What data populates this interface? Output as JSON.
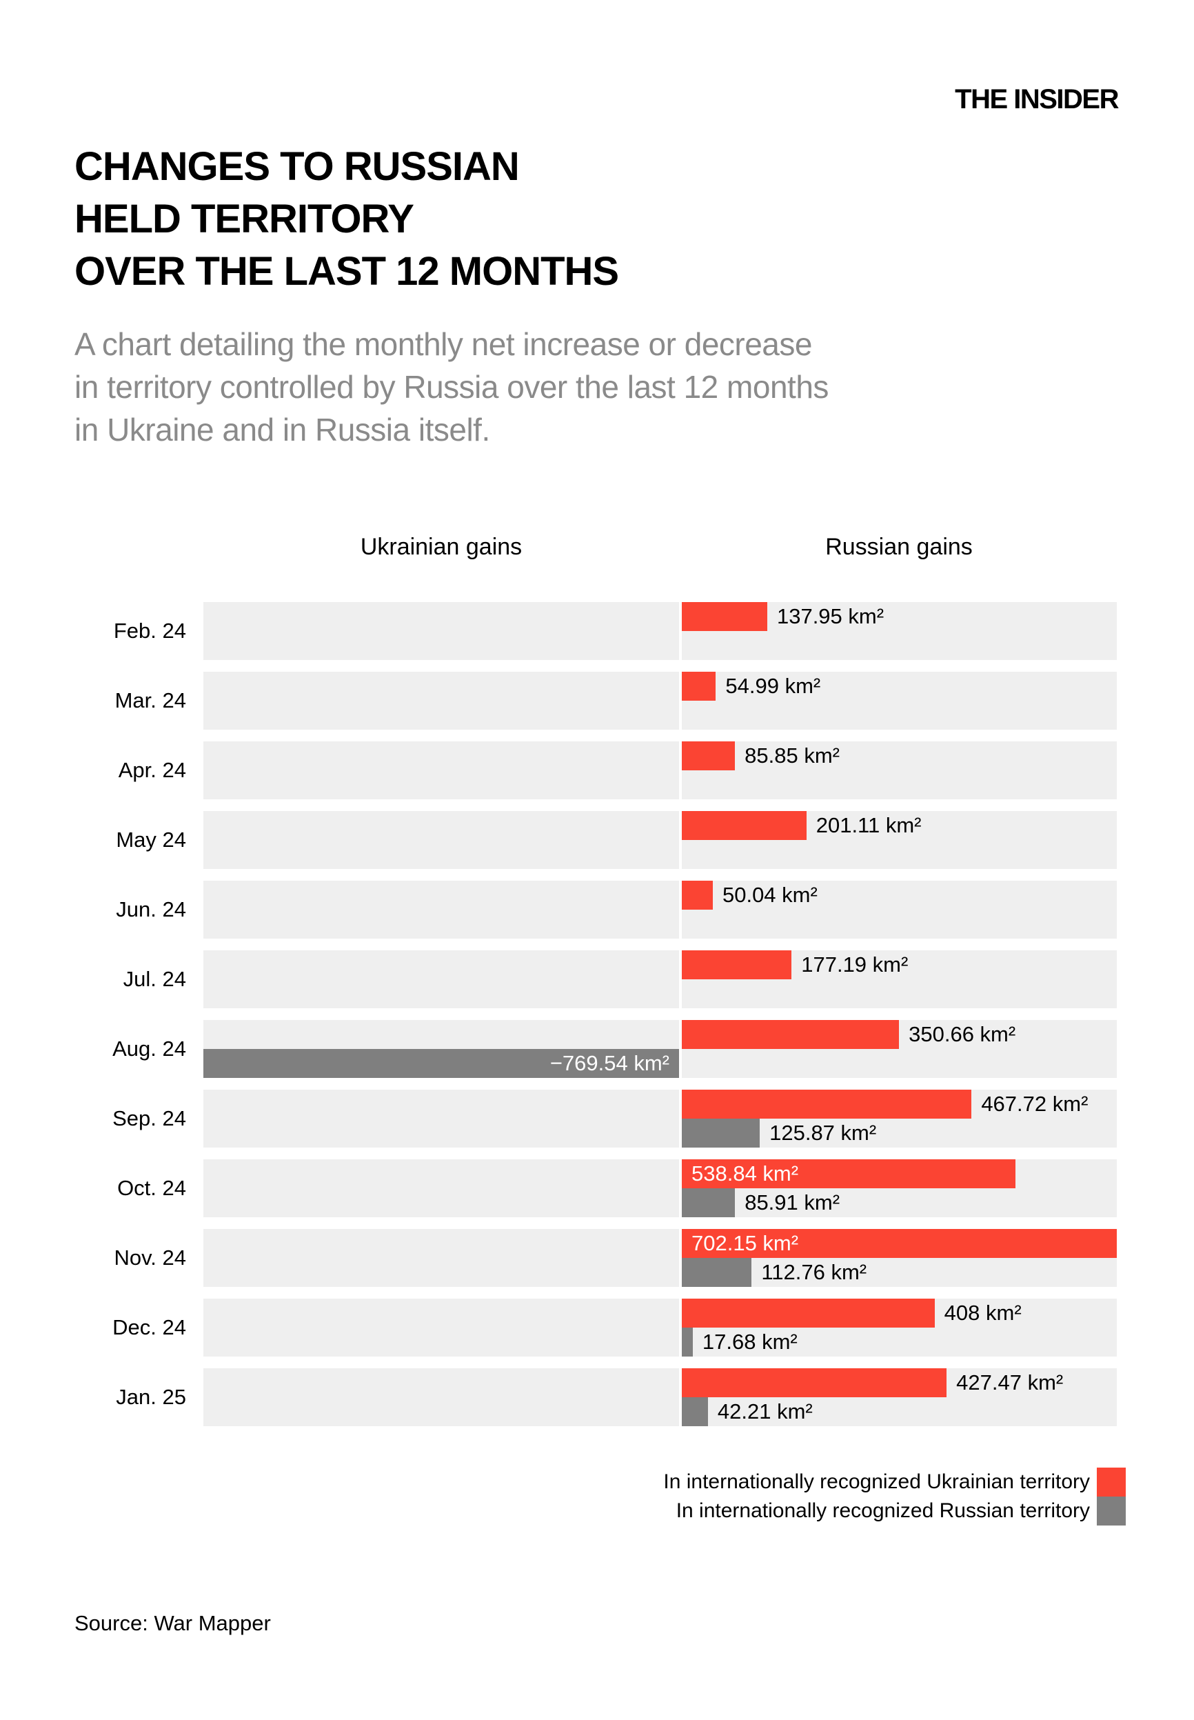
{
  "brand": "THE INSIDER",
  "title_lines": [
    "CHANGES TO RUSSIAN",
    "HELD TERRITORY",
    "OVER THE LAST 12 MONTHS"
  ],
  "subtitle_lines": [
    "A chart detailing the monthly net increase or decrease",
    "in territory controlled by Russia over the last 12 months",
    "in Ukraine and in Russia itself."
  ],
  "column_headers": {
    "left": "Ukrainian gains",
    "right": "Russian gains"
  },
  "legend": [
    {
      "label": "In internationally recognized Ukrainian territory",
      "color": "#fb4433"
    },
    {
      "label": "In internationally recognized Russian territory",
      "color": "#7f7f7f"
    }
  ],
  "source": "Source: War Mapper",
  "colors": {
    "ukraine_red": "#fb4433",
    "russia_gray": "#7f7f7f",
    "row_bg": "#efefef",
    "subtitle_gray": "#8a8a8a"
  },
  "chart_data": {
    "type": "bar",
    "orientation": "horizontal",
    "unit": "km²",
    "title": "Changes to Russian held territory over the last 12 months",
    "axis": {
      "zero_centered": true,
      "max_value": 702.15,
      "min_value": -769.54,
      "grid": false
    },
    "legend_position": "bottom-right",
    "categories": [
      "Feb. 24",
      "Mar. 24",
      "Apr. 24",
      "May 24",
      "Jun. 24",
      "Jul. 24",
      "Aug. 24",
      "Sep. 24",
      "Oct. 24",
      "Nov. 24",
      "Dec. 24",
      "Jan. 25"
    ],
    "series": [
      {
        "name": "In internationally recognized Ukrainian territory",
        "values": [
          137.95,
          54.99,
          85.85,
          201.11,
          50.04,
          177.19,
          350.66,
          467.72,
          538.84,
          702.15,
          408,
          427.47
        ]
      },
      {
        "name": "In internationally recognized Russian territory",
        "values": [
          null,
          null,
          null,
          null,
          null,
          null,
          -769.54,
          125.87,
          85.91,
          112.76,
          17.68,
          42.21
        ]
      }
    ],
    "rows": [
      {
        "month": "Feb. 24",
        "ua": 137.95,
        "ua_label": "137.95 km²",
        "ua_inside": false,
        "ru": null,
        "ru_label": null,
        "ru_inside": false
      },
      {
        "month": "Mar. 24",
        "ua": 54.99,
        "ua_label": "54.99 km²",
        "ua_inside": false,
        "ru": null,
        "ru_label": null,
        "ru_inside": false
      },
      {
        "month": "Apr. 24",
        "ua": 85.85,
        "ua_label": "85.85 km²",
        "ua_inside": false,
        "ru": null,
        "ru_label": null,
        "ru_inside": false
      },
      {
        "month": "May 24",
        "ua": 201.11,
        "ua_label": "201.11 km²",
        "ua_inside": false,
        "ru": null,
        "ru_label": null,
        "ru_inside": false
      },
      {
        "month": "Jun. 24",
        "ua": 50.04,
        "ua_label": "50.04 km²",
        "ua_inside": false,
        "ru": null,
        "ru_label": null,
        "ru_inside": false
      },
      {
        "month": "Jul. 24",
        "ua": 177.19,
        "ua_label": "177.19 km²",
        "ua_inside": false,
        "ru": null,
        "ru_label": null,
        "ru_inside": false
      },
      {
        "month": "Aug. 24",
        "ua": 350.66,
        "ua_label": "350.66 km²",
        "ua_inside": false,
        "ru": -769.54,
        "ru_label": "−769.54 km²",
        "ru_inside": true
      },
      {
        "month": "Sep. 24",
        "ua": 467.72,
        "ua_label": "467.72 km²",
        "ua_inside": false,
        "ru": 125.87,
        "ru_label": "125.87 km²",
        "ru_inside": false
      },
      {
        "month": "Oct. 24",
        "ua": 538.84,
        "ua_label": "538.84 km²",
        "ua_inside": true,
        "ru": 85.91,
        "ru_label": "85.91 km²",
        "ru_inside": false
      },
      {
        "month": "Nov. 24",
        "ua": 702.15,
        "ua_label": "702.15 km²",
        "ua_inside": true,
        "ru": 112.76,
        "ru_label": "112.76 km²",
        "ru_inside": false
      },
      {
        "month": "Dec. 24",
        "ua": 408,
        "ua_label": "408 km²",
        "ua_inside": false,
        "ru": 17.68,
        "ru_label": "17.68 km²",
        "ru_inside": false
      },
      {
        "month": "Jan. 25",
        "ua": 427.47,
        "ua_label": "427.47 km²",
        "ua_inside": false,
        "ru": 42.21,
        "ru_label": "42.21 km²",
        "ru_inside": false
      }
    ]
  }
}
